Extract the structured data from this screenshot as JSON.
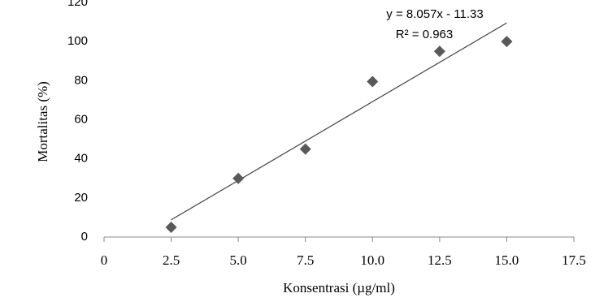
{
  "chart_data": {
    "type": "scatter",
    "x_label": "Konsentrasi (µg/ml)",
    "y_label": "Mortalitas (%)",
    "x": [
      2.5,
      5,
      7.5,
      10,
      12.5,
      15
    ],
    "values": [
      5,
      30,
      45,
      79.5,
      95,
      100
    ],
    "color": "#595959",
    "xlim": [
      0,
      17.5
    ],
    "xticks": [
      0,
      2.5,
      {
        "value": 5,
        "label": "5.0"
      },
      7.5,
      {
        "value": 10,
        "label": "10.0"
      },
      12.5,
      {
        "value": 15,
        "label": "15.0"
      },
      17.5
    ],
    "ylim": [
      0,
      120
    ],
    "yticks": [
      0,
      20,
      40,
      60,
      80,
      100,
      120
    ],
    "grid": false,
    "trendline": {
      "label": "y = 8.057x - 11.33",
      "r2_label": "R² = 0.963",
      "slope": 8.057,
      "intercept": -11.33,
      "r2": 0.963,
      "color": "#404040"
    }
  }
}
